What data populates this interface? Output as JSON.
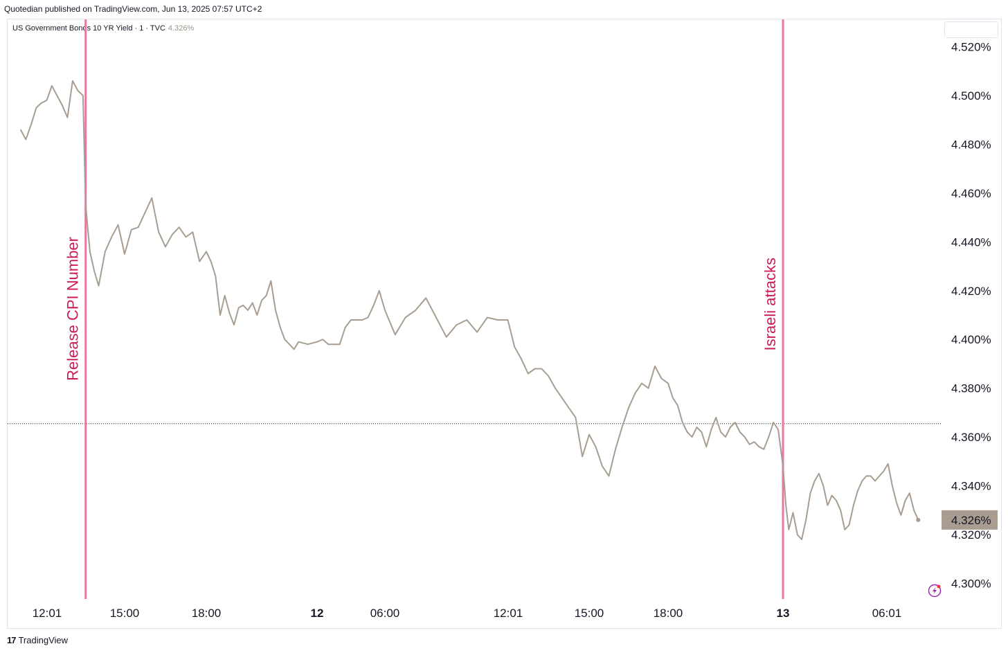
{
  "header": {
    "publisher_line": "Quotedian published on TradingView.com, Jun 13, 2025 07:57 UTC+2"
  },
  "instrument": {
    "name": "US Government Bonds 10 YR Yield · 1 · TVC",
    "last_value": "4.326%"
  },
  "unit_label": "%",
  "footer": {
    "brand": "TradingView",
    "logo_glyph": "17"
  },
  "colors": {
    "line": "#a89d90",
    "annotation": "#e8799e",
    "annotation_text": "#cc1c55",
    "last_badge": "#a89d90"
  },
  "chart_data": {
    "type": "line",
    "title": "US Government Bonds 10 YR Yield",
    "ylabel": "%",
    "ylim": [
      4.296,
      4.522
    ],
    "y_ticks": [
      "4.500%",
      "4.480%",
      "4.460%",
      "4.440%",
      "4.420%",
      "4.400%",
      "4.380%",
      "4.360%",
      "4.340%",
      "4.320%",
      "4.300%"
    ],
    "y_tick_values": [
      4.5,
      4.48,
      4.46,
      4.44,
      4.42,
      4.4,
      4.38,
      4.36,
      4.34,
      4.32,
      4.3
    ],
    "x_ticks": [
      {
        "label": "12:01",
        "time": "2025-06-11T12:01",
        "bold": false
      },
      {
        "label": "15:00",
        "time": "2025-06-11T15:00",
        "bold": false
      },
      {
        "label": "18:00",
        "time": "2025-06-11T18:00",
        "bold": false
      },
      {
        "label": "12",
        "time": "2025-06-12T00:00",
        "bold": true
      },
      {
        "label": "06:00",
        "time": "2025-06-12T06:00",
        "bold": false
      },
      {
        "label": "12:01",
        "time": "2025-06-12T12:01",
        "bold": false
      },
      {
        "label": "15:00",
        "time": "2025-06-12T15:00",
        "bold": false
      },
      {
        "label": "18:00",
        "time": "2025-06-12T18:00",
        "bold": false
      },
      {
        "label": "13",
        "time": "2025-06-13T00:00",
        "bold": true
      },
      {
        "label": "06:01",
        "time": "2025-06-13T06:01",
        "bold": false
      }
    ],
    "series": [
      {
        "name": "US Government Bonds 10 YR Yield",
        "points": [
          [
            "2025-06-11T11:00",
            4.486
          ],
          [
            "2025-06-11T11:12",
            4.482
          ],
          [
            "2025-06-11T11:24",
            4.488
          ],
          [
            "2025-06-11T11:36",
            4.495
          ],
          [
            "2025-06-11T11:48",
            4.497
          ],
          [
            "2025-06-11T12:00",
            4.498
          ],
          [
            "2025-06-11T12:12",
            4.504
          ],
          [
            "2025-06-11T12:24",
            4.5
          ],
          [
            "2025-06-11T12:36",
            4.496
          ],
          [
            "2025-06-11T12:48",
            4.491
          ],
          [
            "2025-06-11T13:00",
            4.506
          ],
          [
            "2025-06-11T13:12",
            4.502
          ],
          [
            "2025-06-11T13:24",
            4.5
          ],
          [
            "2025-06-11T13:30",
            4.455
          ],
          [
            "2025-06-11T13:40",
            4.436
          ],
          [
            "2025-06-11T13:50",
            4.428
          ],
          [
            "2025-06-11T14:00",
            4.422
          ],
          [
            "2025-06-11T14:15",
            4.436
          ],
          [
            "2025-06-11T14:30",
            4.442
          ],
          [
            "2025-06-11T14:45",
            4.447
          ],
          [
            "2025-06-11T15:00",
            4.435
          ],
          [
            "2025-06-11T15:15",
            4.445
          ],
          [
            "2025-06-11T15:30",
            4.446
          ],
          [
            "2025-06-11T15:45",
            4.452
          ],
          [
            "2025-06-11T16:00",
            4.458
          ],
          [
            "2025-06-11T16:15",
            4.444
          ],
          [
            "2025-06-11T16:30",
            4.438
          ],
          [
            "2025-06-11T16:45",
            4.443
          ],
          [
            "2025-06-11T17:00",
            4.446
          ],
          [
            "2025-06-11T17:15",
            4.442
          ],
          [
            "2025-06-11T17:30",
            4.444
          ],
          [
            "2025-06-11T17:45",
            4.432
          ],
          [
            "2025-06-11T18:00",
            4.436
          ],
          [
            "2025-06-11T18:15",
            4.432
          ],
          [
            "2025-06-11T18:30",
            4.426
          ],
          [
            "2025-06-11T18:45",
            4.41
          ],
          [
            "2025-06-11T19:00",
            4.418
          ],
          [
            "2025-06-11T19:15",
            4.411
          ],
          [
            "2025-06-11T19:30",
            4.406
          ],
          [
            "2025-06-11T19:45",
            4.413
          ],
          [
            "2025-06-11T20:00",
            4.414
          ],
          [
            "2025-06-11T20:15",
            4.412
          ],
          [
            "2025-06-11T20:30",
            4.415
          ],
          [
            "2025-06-11T20:45",
            4.41
          ],
          [
            "2025-06-11T21:00",
            4.416
          ],
          [
            "2025-06-11T21:15",
            4.418
          ],
          [
            "2025-06-11T21:30",
            4.424
          ],
          [
            "2025-06-11T21:45",
            4.412
          ],
          [
            "2025-06-11T22:00",
            4.405
          ],
          [
            "2025-06-11T22:15",
            4.4
          ],
          [
            "2025-06-11T22:30",
            4.398
          ],
          [
            "2025-06-11T22:45",
            4.396
          ],
          [
            "2025-06-11T23:00",
            4.399
          ],
          [
            "2025-06-11T23:30",
            4.398
          ],
          [
            "2025-06-12T00:00",
            4.399
          ],
          [
            "2025-06-12T00:30",
            4.4
          ],
          [
            "2025-06-12T01:00",
            4.398
          ],
          [
            "2025-06-12T01:30",
            4.398
          ],
          [
            "2025-06-12T02:00",
            4.398
          ],
          [
            "2025-06-12T02:30",
            4.405
          ],
          [
            "2025-06-12T03:00",
            4.408
          ],
          [
            "2025-06-12T03:30",
            4.408
          ],
          [
            "2025-06-12T04:00",
            4.408
          ],
          [
            "2025-06-12T04:30",
            4.409
          ],
          [
            "2025-06-12T05:00",
            4.414
          ],
          [
            "2025-06-12T05:30",
            4.42
          ],
          [
            "2025-06-12T06:00",
            4.412
          ],
          [
            "2025-06-12T06:30",
            4.402
          ],
          [
            "2025-06-12T07:00",
            4.409
          ],
          [
            "2025-06-12T07:30",
            4.412
          ],
          [
            "2025-06-12T08:00",
            4.417
          ],
          [
            "2025-06-12T08:30",
            4.409
          ],
          [
            "2025-06-12T09:00",
            4.401
          ],
          [
            "2025-06-12T09:30",
            4.406
          ],
          [
            "2025-06-12T10:00",
            4.408
          ],
          [
            "2025-06-12T10:30",
            4.403
          ],
          [
            "2025-06-12T11:00",
            4.409
          ],
          [
            "2025-06-12T11:30",
            4.408
          ],
          [
            "2025-06-12T12:00",
            4.408
          ],
          [
            "2025-06-12T12:15",
            4.397
          ],
          [
            "2025-06-12T12:30",
            4.392
          ],
          [
            "2025-06-12T12:45",
            4.386
          ],
          [
            "2025-06-12T13:00",
            4.388
          ],
          [
            "2025-06-12T13:15",
            4.388
          ],
          [
            "2025-06-12T13:30",
            4.385
          ],
          [
            "2025-06-12T13:45",
            4.38
          ],
          [
            "2025-06-12T14:00",
            4.376
          ],
          [
            "2025-06-12T14:15",
            4.372
          ],
          [
            "2025-06-12T14:30",
            4.368
          ],
          [
            "2025-06-12T14:45",
            4.352
          ],
          [
            "2025-06-12T15:00",
            4.361
          ],
          [
            "2025-06-12T15:15",
            4.356
          ],
          [
            "2025-06-12T15:30",
            4.348
          ],
          [
            "2025-06-12T15:45",
            4.344
          ],
          [
            "2025-06-12T16:00",
            4.355
          ],
          [
            "2025-06-12T16:15",
            4.364
          ],
          [
            "2025-06-12T16:30",
            4.372
          ],
          [
            "2025-06-12T16:45",
            4.378
          ],
          [
            "2025-06-12T17:00",
            4.382
          ],
          [
            "2025-06-12T17:15",
            4.38
          ],
          [
            "2025-06-12T17:30",
            4.389
          ],
          [
            "2025-06-12T17:45",
            4.384
          ],
          [
            "2025-06-12T18:00",
            4.382
          ],
          [
            "2025-06-12T18:15",
            4.376
          ],
          [
            "2025-06-12T18:30",
            4.373
          ],
          [
            "2025-06-12T18:45",
            4.366
          ],
          [
            "2025-06-12T19:00",
            4.362
          ],
          [
            "2025-06-12T19:15",
            4.36
          ],
          [
            "2025-06-12T19:30",
            4.364
          ],
          [
            "2025-06-12T19:45",
            4.362
          ],
          [
            "2025-06-12T20:00",
            4.356
          ],
          [
            "2025-06-12T20:15",
            4.363
          ],
          [
            "2025-06-12T20:30",
            4.368
          ],
          [
            "2025-06-12T20:45",
            4.362
          ],
          [
            "2025-06-12T21:00",
            4.36
          ],
          [
            "2025-06-12T21:15",
            4.364
          ],
          [
            "2025-06-12T21:30",
            4.366
          ],
          [
            "2025-06-12T21:45",
            4.362
          ],
          [
            "2025-06-12T22:00",
            4.36
          ],
          [
            "2025-06-12T22:15",
            4.357
          ],
          [
            "2025-06-12T22:30",
            4.358
          ],
          [
            "2025-06-12T22:45",
            4.356
          ],
          [
            "2025-06-12T23:00",
            4.355
          ],
          [
            "2025-06-12T23:15",
            4.36
          ],
          [
            "2025-06-12T23:30",
            4.366
          ],
          [
            "2025-06-12T23:45",
            4.363
          ],
          [
            "2025-06-13T00:00",
            4.348
          ],
          [
            "2025-06-13T00:10",
            4.332
          ],
          [
            "2025-06-13T00:20",
            4.322
          ],
          [
            "2025-06-13T00:35",
            4.329
          ],
          [
            "2025-06-13T00:50",
            4.32
          ],
          [
            "2025-06-13T01:05",
            4.318
          ],
          [
            "2025-06-13T01:20",
            4.326
          ],
          [
            "2025-06-13T01:35",
            4.337
          ],
          [
            "2025-06-13T01:50",
            4.342
          ],
          [
            "2025-06-13T02:05",
            4.345
          ],
          [
            "2025-06-13T02:20",
            4.34
          ],
          [
            "2025-06-13T02:35",
            4.332
          ],
          [
            "2025-06-13T02:50",
            4.336
          ],
          [
            "2025-06-13T03:05",
            4.334
          ],
          [
            "2025-06-13T03:20",
            4.33
          ],
          [
            "2025-06-13T03:35",
            4.322
          ],
          [
            "2025-06-13T03:50",
            4.324
          ],
          [
            "2025-06-13T04:05",
            4.332
          ],
          [
            "2025-06-13T04:20",
            4.338
          ],
          [
            "2025-06-13T04:35",
            4.342
          ],
          [
            "2025-06-13T04:50",
            4.344
          ],
          [
            "2025-06-13T05:05",
            4.344
          ],
          [
            "2025-06-13T05:20",
            4.342
          ],
          [
            "2025-06-13T05:35",
            4.344
          ],
          [
            "2025-06-13T05:50",
            4.346
          ],
          [
            "2025-06-13T06:05",
            4.349
          ],
          [
            "2025-06-13T06:20",
            4.34
          ],
          [
            "2025-06-13T06:35",
            4.333
          ],
          [
            "2025-06-13T06:50",
            4.328
          ],
          [
            "2025-06-13T07:05",
            4.334
          ],
          [
            "2025-06-13T07:20",
            4.337
          ],
          [
            "2025-06-13T07:35",
            4.33
          ],
          [
            "2025-06-13T07:50",
            4.326
          ]
        ]
      }
    ],
    "reference_line": {
      "value": 4.3655,
      "style": "dotted"
    },
    "annotations": [
      {
        "label": "Release CPI Number",
        "time": "2025-06-11T13:30"
      },
      {
        "label": "Israeli attacks",
        "time": "2025-06-13T00:00"
      }
    ],
    "last_value_label": "4.326%",
    "grid": false
  }
}
